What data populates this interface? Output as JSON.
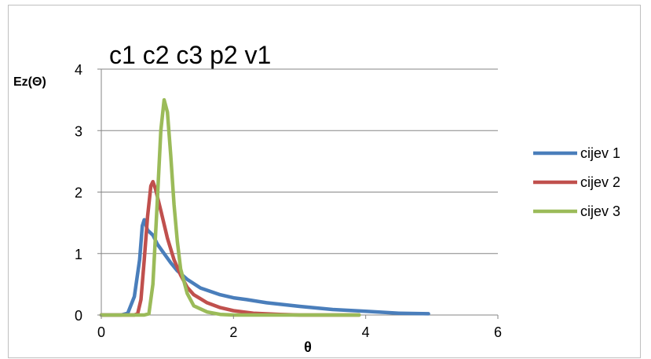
{
  "chart_data": {
    "type": "line",
    "title": "c1 c2 c3 p2 v1",
    "xlabel": "θ",
    "ylabel": "Ez(Θ)",
    "xlim": [
      0,
      6
    ],
    "ylim": [
      0,
      4
    ],
    "x_ticks": [
      "0",
      "2",
      "4",
      "6"
    ],
    "y_ticks": [
      "0",
      "1",
      "2",
      "3",
      "4"
    ],
    "grid": "horizontal",
    "legend_position": "right",
    "series": [
      {
        "name": "cijev 1",
        "color": "#4a7ebb",
        "points": [
          [
            0,
            0
          ],
          [
            0.3,
            0
          ],
          [
            0.4,
            0.03
          ],
          [
            0.5,
            0.3
          ],
          [
            0.58,
            0.9
          ],
          [
            0.62,
            1.45
          ],
          [
            0.65,
            1.55
          ],
          [
            0.7,
            1.38
          ],
          [
            0.78,
            1.3
          ],
          [
            0.85,
            1.15
          ],
          [
            0.95,
            1.0
          ],
          [
            1.05,
            0.85
          ],
          [
            1.15,
            0.72
          ],
          [
            1.3,
            0.58
          ],
          [
            1.5,
            0.44
          ],
          [
            1.8,
            0.33
          ],
          [
            2.0,
            0.28
          ],
          [
            2.2,
            0.25
          ],
          [
            2.5,
            0.2
          ],
          [
            3.0,
            0.14
          ],
          [
            3.5,
            0.09
          ],
          [
            4.0,
            0.06
          ],
          [
            4.5,
            0.03
          ],
          [
            4.95,
            0.02
          ]
        ]
      },
      {
        "name": "cijev 2",
        "color": "#c0504d",
        "points": [
          [
            0,
            0
          ],
          [
            0.5,
            0
          ],
          [
            0.55,
            0.02
          ],
          [
            0.6,
            0.25
          ],
          [
            0.65,
            0.9
          ],
          [
            0.7,
            1.6
          ],
          [
            0.75,
            2.1
          ],
          [
            0.78,
            2.17
          ],
          [
            0.82,
            2.05
          ],
          [
            0.9,
            1.7
          ],
          [
            1.0,
            1.25
          ],
          [
            1.1,
            0.9
          ],
          [
            1.2,
            0.65
          ],
          [
            1.3,
            0.45
          ],
          [
            1.4,
            0.33
          ],
          [
            1.6,
            0.2
          ],
          [
            1.8,
            0.12
          ],
          [
            2.0,
            0.07
          ],
          [
            2.3,
            0.03
          ],
          [
            2.7,
            0.01
          ],
          [
            3.0,
            0.0
          ],
          [
            3.9,
            0.0
          ]
        ]
      },
      {
        "name": "cijev 3",
        "color": "#9bbb59",
        "points": [
          [
            0,
            0
          ],
          [
            0.65,
            0
          ],
          [
            0.72,
            0.02
          ],
          [
            0.78,
            0.5
          ],
          [
            0.84,
            1.7
          ],
          [
            0.9,
            3.0
          ],
          [
            0.95,
            3.5
          ],
          [
            1.0,
            3.3
          ],
          [
            1.05,
            2.6
          ],
          [
            1.1,
            1.8
          ],
          [
            1.15,
            1.2
          ],
          [
            1.2,
            0.75
          ],
          [
            1.3,
            0.35
          ],
          [
            1.4,
            0.15
          ],
          [
            1.6,
            0.05
          ],
          [
            1.8,
            0.01
          ],
          [
            2.0,
            0.0
          ],
          [
            3.0,
            0.0
          ],
          [
            3.9,
            0.0
          ]
        ]
      }
    ]
  }
}
